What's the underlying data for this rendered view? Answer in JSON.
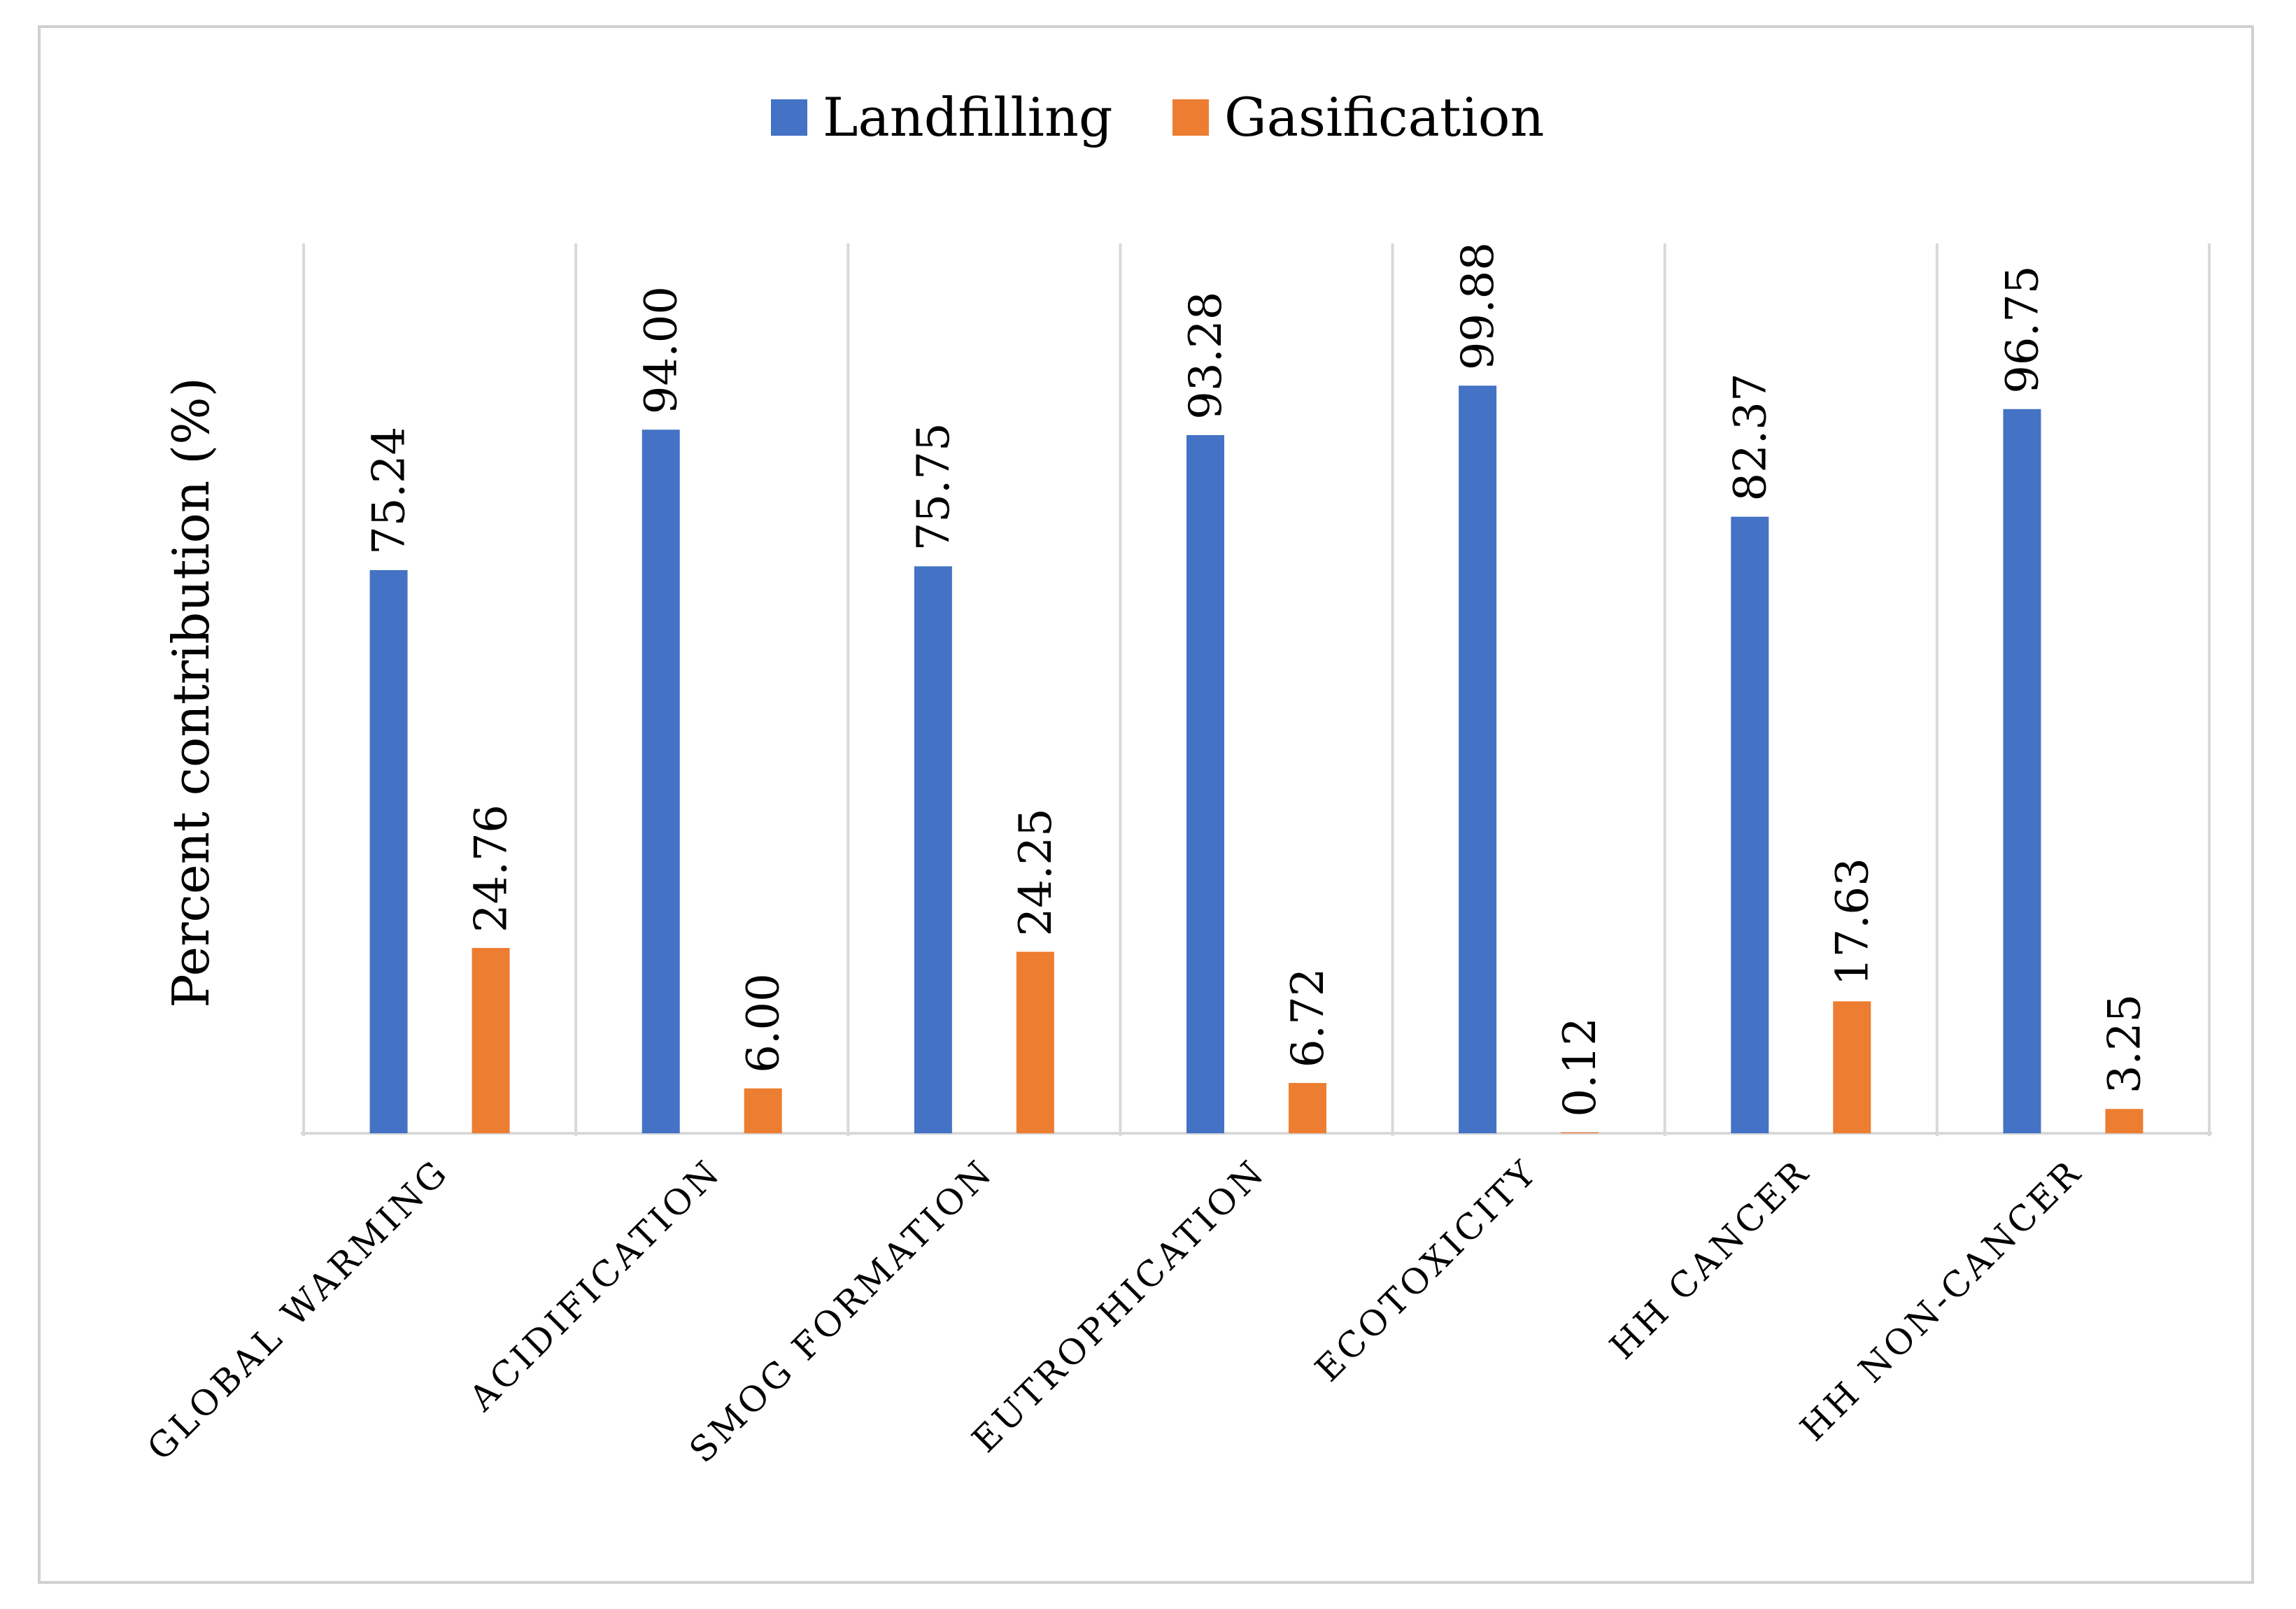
{
  "chart_data": {
    "type": "bar",
    "title": "",
    "xlabel": "",
    "ylabel": "Percent contribution (%)",
    "ylim": [
      0,
      100
    ],
    "grid": "vertical separators between categories",
    "legend_position": "top-center",
    "categories": [
      "GLOBAL WARMING",
      "ACIDIFICATION",
      "SMOG FORMATION",
      "EUTROPHICATION",
      "ECOTOXICITY",
      "HH CANCER",
      "HH NON-CANCER"
    ],
    "series": [
      {
        "name": "Landfilling",
        "color": "#4472C4",
        "values": [
          75.24,
          94.0,
          75.75,
          93.28,
          99.88,
          82.37,
          96.75
        ],
        "labels": [
          "75.24",
          "94.00",
          "75.75",
          "93.28",
          "99.88",
          "82.37",
          "96.75"
        ]
      },
      {
        "name": "Gasification",
        "color": "#ED7D31",
        "values": [
          24.76,
          6.0,
          24.25,
          6.72,
          0.12,
          17.63,
          3.25
        ],
        "labels": [
          "24.76",
          "6.00",
          "24.25",
          "6.72",
          "0.12",
          "17.63",
          "3.25"
        ]
      }
    ]
  }
}
